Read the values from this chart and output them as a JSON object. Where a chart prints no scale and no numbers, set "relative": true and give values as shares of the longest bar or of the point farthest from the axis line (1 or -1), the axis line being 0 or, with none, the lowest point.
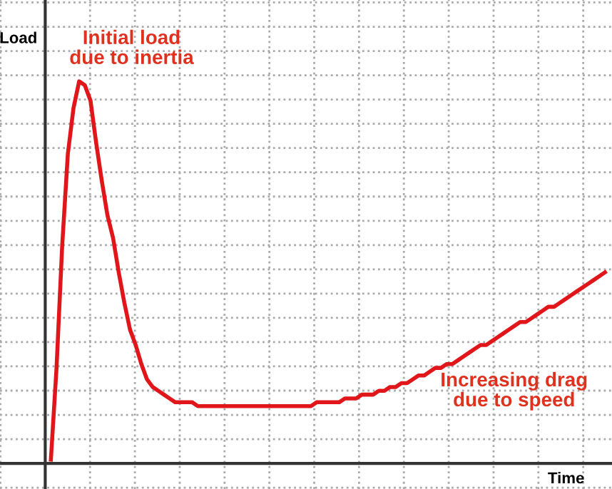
{
  "chart_data": {
    "type": "line",
    "relative": true,
    "xlabel": "Time",
    "ylabel": "Load",
    "tick_labels": false,
    "grid": true,
    "marker": "none",
    "line_style": "solid",
    "annotations": [
      "Initial load\ndue to inertia",
      "Increasing drag\ndue to speed"
    ],
    "categories": [
      null,
      null,
      null,
      null,
      null,
      null,
      null,
      null,
      null,
      null,
      null,
      null,
      null,
      null,
      null,
      null,
      null,
      null,
      null,
      null,
      null,
      null,
      null,
      null,
      null,
      null,
      null,
      null,
      null,
      null,
      null,
      null,
      null,
      null,
      null,
      null,
      null,
      null,
      null,
      null,
      null,
      null,
      null,
      null,
      null,
      null,
      null,
      null,
      null,
      null,
      null,
      null,
      null,
      null,
      null,
      null,
      null,
      null,
      null,
      null,
      null,
      null,
      null,
      null,
      null,
      null,
      null,
      null,
      null,
      null,
      null,
      null,
      null,
      null,
      null,
      null,
      null,
      null,
      null,
      null,
      null,
      null,
      null,
      null,
      null,
      null,
      null,
      null,
      null,
      null,
      null,
      null,
      null,
      null,
      null,
      null,
      null,
      null,
      null
    ],
    "series": [
      {
        "color": "#e0161b",
        "values": [
          0.01,
          0.25,
          0.57,
          0.81,
          0.93,
          1.0,
          0.99,
          0.95,
          0.84,
          0.74,
          0.65,
          0.59,
          0.5,
          0.42,
          0.35,
          0.31,
          0.26,
          0.22,
          0.2,
          0.19,
          0.18,
          0.17,
          0.16,
          0.16,
          0.16,
          0.16,
          0.15,
          0.15,
          0.15,
          0.15,
          0.15,
          0.15,
          0.15,
          0.15,
          0.15,
          0.15,
          0.15,
          0.15,
          0.15,
          0.15,
          0.15,
          0.15,
          0.15,
          0.15,
          0.15,
          0.15,
          0.15,
          0.16,
          0.16,
          0.16,
          0.16,
          0.16,
          0.17,
          0.17,
          0.17,
          0.18,
          0.18,
          0.18,
          0.19,
          0.19,
          0.2,
          0.2,
          0.21,
          0.21,
          0.22,
          0.23,
          0.23,
          0.24,
          0.25,
          0.25,
          0.26,
          0.26,
          0.27,
          0.28,
          0.29,
          0.3,
          0.31,
          0.31,
          0.32,
          0.33,
          0.34,
          0.35,
          0.36,
          0.37,
          0.37,
          0.38,
          0.39,
          0.4,
          0.41,
          0.41,
          0.42,
          0.43,
          0.44,
          0.45,
          0.46,
          0.47,
          0.48,
          0.49,
          0.5
        ]
      }
    ]
  }
}
